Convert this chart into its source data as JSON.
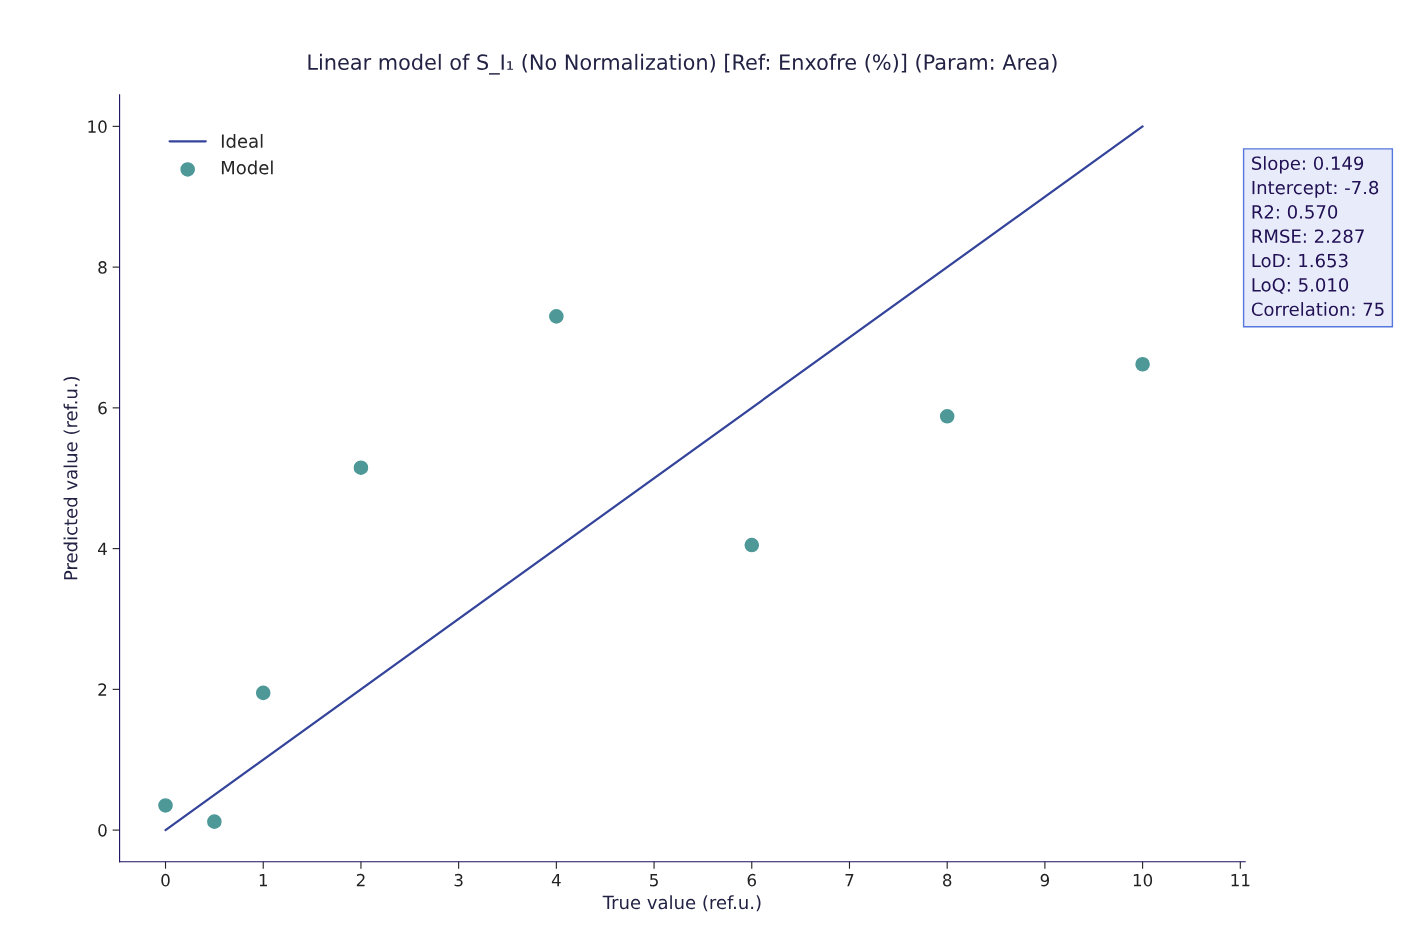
{
  "chart_data": {
    "type": "scatter",
    "title": "Linear model of S_I₁ (No Normalization) [Ref: Enxofre (%)] (Param: Area)",
    "xlabel": "True value (ref.u.)",
    "ylabel": "Predicted value (ref.u.)",
    "xlim": [
      -0.47,
      11.05
    ],
    "ylim": [
      -0.45,
      10.45
    ],
    "xticks": [
      0,
      1,
      2,
      3,
      4,
      5,
      6,
      7,
      8,
      9,
      10,
      11
    ],
    "yticks": [
      0,
      2,
      4,
      6,
      8,
      10
    ],
    "series": [
      {
        "name": "Ideal",
        "type": "line",
        "x": [
          0,
          10
        ],
        "values": [
          0,
          10
        ],
        "color": "#34449a",
        "marker": "none"
      },
      {
        "name": "Model",
        "x": [
          0,
          0.5,
          1,
          2,
          4,
          6,
          8,
          10
        ],
        "values": [
          0.35,
          0.12,
          1.95,
          5.15,
          7.3,
          4.05,
          5.88,
          6.62
        ],
        "color": "#4e9898",
        "marker": "circle"
      }
    ],
    "annotations": [
      "Slope: 0.149",
      "Intercept: -7.8",
      "R2: 0.570",
      "RMSE: 2.287",
      "LoD: 1.653",
      "LoQ: 5.010",
      "Correlation: 75"
    ],
    "legend": "top left",
    "grid": false
  }
}
